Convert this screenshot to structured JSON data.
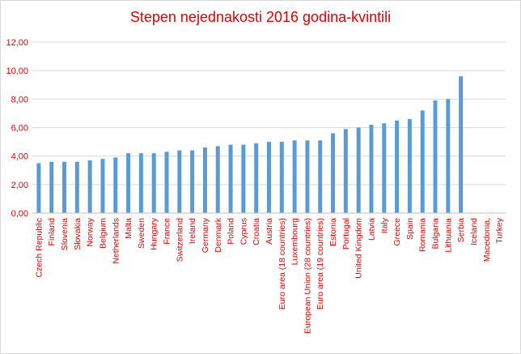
{
  "chart_data": {
    "type": "bar",
    "title": "Stepen nejednakosti 2016 godina-kvintili",
    "xlabel": "",
    "ylabel": "",
    "ylim": [
      0,
      12
    ],
    "y_ticks": [
      "0,00",
      "2,00",
      "4,00",
      "6,00",
      "8,00",
      "10,00",
      "12,00"
    ],
    "grid": "horizontal",
    "legend": "none",
    "categories": [
      "Czech Republic",
      "Finland",
      "Slovenia",
      "Slovakia",
      "Norway",
      "Belgium",
      "Netherlands",
      "Malta",
      "Sweden",
      "Hungary",
      "France",
      "Switzerland",
      "Ireland",
      "Germany",
      "Denmark",
      "Poland",
      "Cyprus",
      "Croatia",
      "Austria",
      "Euro area (18 countries)",
      "Luxembourg",
      "European Union (28 countries)",
      "Euro area (19 countries)",
      "Estonia",
      "Portugal",
      "United Kingdom",
      "Latvia",
      "Italy",
      "Greece",
      "Spain",
      "Romania",
      "Bulgaria",
      "Lithuania",
      "Serbia",
      "Iceland",
      "Macedonia,",
      "Turkey"
    ],
    "values": [
      3.5,
      3.6,
      3.6,
      3.6,
      3.7,
      3.8,
      3.9,
      4.2,
      4.2,
      4.2,
      4.3,
      4.4,
      4.4,
      4.6,
      4.7,
      4.8,
      4.8,
      4.9,
      5.0,
      5.0,
      5.1,
      5.1,
      5.1,
      5.6,
      5.9,
      6.0,
      6.2,
      6.3,
      6.5,
      6.6,
      7.2,
      7.9,
      8.0,
      9.6,
      null,
      null,
      null
    ],
    "colors": {
      "bar": "#5b9bd5",
      "title": "#e00000",
      "tick_labels": "#e00000",
      "gridline": "#d9d9d9",
      "axis": "#bfbfbf"
    }
  }
}
